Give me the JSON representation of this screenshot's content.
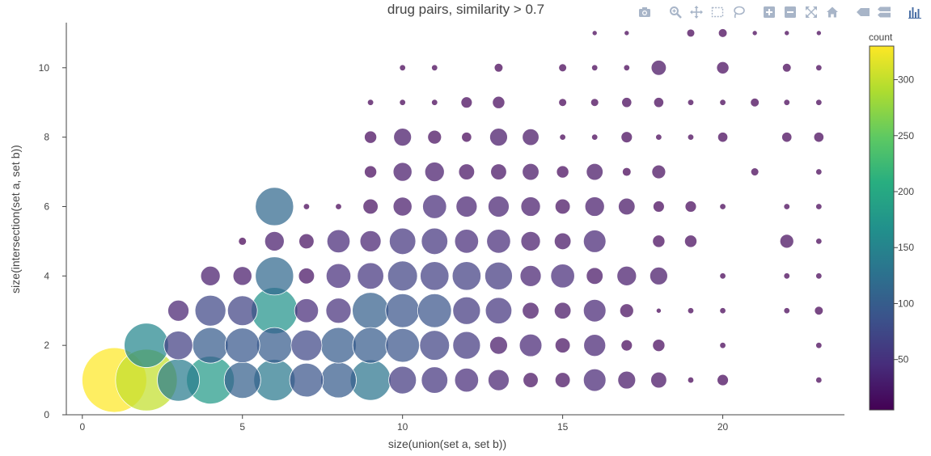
{
  "chart_data": {
    "type": "scatter",
    "title": "drug pairs, similarity > 0.7",
    "xlabel": "size(union(set a, set b))",
    "ylabel": "size(intersection(set a, set b))",
    "xlim": [
      -0.5,
      23.8
    ],
    "ylim": [
      0,
      11.3
    ],
    "xticks": [
      0,
      5,
      10,
      15,
      20
    ],
    "yticks": [
      0,
      2,
      4,
      6,
      8,
      10
    ],
    "grid": false,
    "marker_size_encodes": "count",
    "colorbar": {
      "title": "count",
      "min": 5,
      "max": 330,
      "ticks": [
        50,
        100,
        150,
        200,
        250,
        300
      ],
      "colorscale": "viridis"
    },
    "points": [
      {
        "x": 1,
        "y": 1,
        "count": 330
      },
      {
        "x": 2,
        "y": 1,
        "count": 300
      },
      {
        "x": 2,
        "y": 2,
        "count": 155
      },
      {
        "x": 3,
        "y": 1,
        "count": 140
      },
      {
        "x": 3,
        "y": 2,
        "count": 65
      },
      {
        "x": 3,
        "y": 3,
        "count": 35
      },
      {
        "x": 4,
        "y": 1,
        "count": 180
      },
      {
        "x": 4,
        "y": 2,
        "count": 100
      },
      {
        "x": 4,
        "y": 3,
        "count": 75
      },
      {
        "x": 4,
        "y": 4,
        "count": 30
      },
      {
        "x": 5,
        "y": 1,
        "count": 105
      },
      {
        "x": 5,
        "y": 2,
        "count": 95
      },
      {
        "x": 5,
        "y": 3,
        "count": 70
      },
      {
        "x": 5,
        "y": 4,
        "count": 28
      },
      {
        "x": 5,
        "y": 5,
        "count": 5
      },
      {
        "x": 6,
        "y": 1,
        "count": 135
      },
      {
        "x": 6,
        "y": 2,
        "count": 100
      },
      {
        "x": 6,
        "y": 3,
        "count": 170
      },
      {
        "x": 6,
        "y": 4,
        "count": 115
      },
      {
        "x": 6,
        "y": 5,
        "count": 30
      },
      {
        "x": 6,
        "y": 6,
        "count": 115
      },
      {
        "x": 7,
        "y": 1,
        "count": 90
      },
      {
        "x": 7,
        "y": 2,
        "count": 75
      },
      {
        "x": 7,
        "y": 3,
        "count": 45
      },
      {
        "x": 7,
        "y": 4,
        "count": 20
      },
      {
        "x": 7,
        "y": 5,
        "count": 18
      },
      {
        "x": 7,
        "y": 6,
        "count": 3
      },
      {
        "x": 8,
        "y": 1,
        "count": 100
      },
      {
        "x": 8,
        "y": 2,
        "count": 100
      },
      {
        "x": 8,
        "y": 3,
        "count": 50
      },
      {
        "x": 8,
        "y": 4,
        "count": 48
      },
      {
        "x": 8,
        "y": 5,
        "count": 42
      },
      {
        "x": 8,
        "y": 6,
        "count": 3
      },
      {
        "x": 9,
        "y": 1,
        "count": 130
      },
      {
        "x": 9,
        "y": 2,
        "count": 100
      },
      {
        "x": 9,
        "y": 3,
        "count": 105
      },
      {
        "x": 9,
        "y": 4,
        "count": 55
      },
      {
        "x": 9,
        "y": 5,
        "count": 35
      },
      {
        "x": 9,
        "y": 6,
        "count": 18
      },
      {
        "x": 9,
        "y": 7,
        "count": 12
      },
      {
        "x": 9,
        "y": 8,
        "count": 12
      },
      {
        "x": 9,
        "y": 9,
        "count": 3
      },
      {
        "x": 10,
        "y": 1,
        "count": 60
      },
      {
        "x": 10,
        "y": 2,
        "count": 90
      },
      {
        "x": 10,
        "y": 3,
        "count": 90
      },
      {
        "x": 10,
        "y": 4,
        "count": 70
      },
      {
        "x": 10,
        "y": 5,
        "count": 55
      },
      {
        "x": 10,
        "y": 6,
        "count": 28
      },
      {
        "x": 10,
        "y": 7,
        "count": 28
      },
      {
        "x": 10,
        "y": 8,
        "count": 25
      },
      {
        "x": 10,
        "y": 9,
        "count": 3
      },
      {
        "x": 10,
        "y": 10,
        "count": 3
      },
      {
        "x": 11,
        "y": 1,
        "count": 55
      },
      {
        "x": 11,
        "y": 2,
        "count": 70
      },
      {
        "x": 11,
        "y": 3,
        "count": 90
      },
      {
        "x": 11,
        "y": 4,
        "count": 65
      },
      {
        "x": 11,
        "y": 5,
        "count": 55
      },
      {
        "x": 11,
        "y": 6,
        "count": 45
      },
      {
        "x": 11,
        "y": 7,
        "count": 30
      },
      {
        "x": 11,
        "y": 8,
        "count": 15
      },
      {
        "x": 11,
        "y": 9,
        "count": 3
      },
      {
        "x": 11,
        "y": 10,
        "count": 3
      },
      {
        "x": 12,
        "y": 1,
        "count": 45
      },
      {
        "x": 12,
        "y": 2,
        "count": 60
      },
      {
        "x": 12,
        "y": 3,
        "count": 60
      },
      {
        "x": 12,
        "y": 4,
        "count": 65
      },
      {
        "x": 12,
        "y": 5,
        "count": 45
      },
      {
        "x": 12,
        "y": 6,
        "count": 35
      },
      {
        "x": 12,
        "y": 7,
        "count": 20
      },
      {
        "x": 12,
        "y": 8,
        "count": 8
      },
      {
        "x": 12,
        "y": 9,
        "count": 10
      },
      {
        "x": 13,
        "y": 1,
        "count": 35
      },
      {
        "x": 13,
        "y": 2,
        "count": 25
      },
      {
        "x": 13,
        "y": 3,
        "count": 55
      },
      {
        "x": 13,
        "y": 4,
        "count": 60
      },
      {
        "x": 13,
        "y": 5,
        "count": 45
      },
      {
        "x": 13,
        "y": 6,
        "count": 35
      },
      {
        "x": 13,
        "y": 7,
        "count": 20
      },
      {
        "x": 13,
        "y": 8,
        "count": 25
      },
      {
        "x": 13,
        "y": 9,
        "count": 12
      },
      {
        "x": 13,
        "y": 10,
        "count": 6
      },
      {
        "x": 14,
        "y": 1,
        "count": 18
      },
      {
        "x": 14,
        "y": 2,
        "count": 40
      },
      {
        "x": 14,
        "y": 3,
        "count": 22
      },
      {
        "x": 14,
        "y": 4,
        "count": 35
      },
      {
        "x": 14,
        "y": 5,
        "count": 30
      },
      {
        "x": 14,
        "y": 6,
        "count": 30
      },
      {
        "x": 14,
        "y": 7,
        "count": 22
      },
      {
        "x": 14,
        "y": 8,
        "count": 22
      },
      {
        "x": 15,
        "y": 1,
        "count": 18
      },
      {
        "x": 15,
        "y": 2,
        "count": 18
      },
      {
        "x": 15,
        "y": 3,
        "count": 22
      },
      {
        "x": 15,
        "y": 4,
        "count": 45
      },
      {
        "x": 15,
        "y": 5,
        "count": 22
      },
      {
        "x": 15,
        "y": 6,
        "count": 18
      },
      {
        "x": 15,
        "y": 7,
        "count": 12
      },
      {
        "x": 15,
        "y": 8,
        "count": 3
      },
      {
        "x": 15,
        "y": 9,
        "count": 5
      },
      {
        "x": 15,
        "y": 10,
        "count": 5
      },
      {
        "x": 16,
        "y": 1,
        "count": 40
      },
      {
        "x": 16,
        "y": 2,
        "count": 38
      },
      {
        "x": 16,
        "y": 3,
        "count": 40
      },
      {
        "x": 16,
        "y": 4,
        "count": 22
      },
      {
        "x": 16,
        "y": 5,
        "count": 40
      },
      {
        "x": 16,
        "y": 6,
        "count": 30
      },
      {
        "x": 16,
        "y": 7,
        "count": 22
      },
      {
        "x": 16,
        "y": 8,
        "count": 3
      },
      {
        "x": 16,
        "y": 9,
        "count": 5
      },
      {
        "x": 16,
        "y": 10,
        "count": 3
      },
      {
        "x": 16,
        "y": 11,
        "count": 2
      },
      {
        "x": 17,
        "y": 1,
        "count": 25
      },
      {
        "x": 17,
        "y": 2,
        "count": 10
      },
      {
        "x": 17,
        "y": 3,
        "count": 15
      },
      {
        "x": 17,
        "y": 4,
        "count": 30
      },
      {
        "x": 17,
        "y": 6,
        "count": 22
      },
      {
        "x": 17,
        "y": 7,
        "count": 6
      },
      {
        "x": 17,
        "y": 8,
        "count": 10
      },
      {
        "x": 17,
        "y": 9,
        "count": 8
      },
      {
        "x": 17,
        "y": 10,
        "count": 3
      },
      {
        "x": 17,
        "y": 11,
        "count": 2
      },
      {
        "x": 18,
        "y": 1,
        "count": 20
      },
      {
        "x": 18,
        "y": 2,
        "count": 12
      },
      {
        "x": 18,
        "y": 3,
        "count": 2
      },
      {
        "x": 18,
        "y": 4,
        "count": 25
      },
      {
        "x": 18,
        "y": 5,
        "count": 12
      },
      {
        "x": 18,
        "y": 6,
        "count": 10
      },
      {
        "x": 18,
        "y": 7,
        "count": 15
      },
      {
        "x": 18,
        "y": 8,
        "count": 3
      },
      {
        "x": 18,
        "y": 9,
        "count": 8
      },
      {
        "x": 18,
        "y": 10,
        "count": 18
      },
      {
        "x": 19,
        "y": 1,
        "count": 3
      },
      {
        "x": 19,
        "y": 3,
        "count": 3
      },
      {
        "x": 19,
        "y": 5,
        "count": 12
      },
      {
        "x": 19,
        "y": 6,
        "count": 10
      },
      {
        "x": 19,
        "y": 8,
        "count": 3
      },
      {
        "x": 19,
        "y": 9,
        "count": 3
      },
      {
        "x": 19,
        "y": 11,
        "count": 5
      },
      {
        "x": 20,
        "y": 1,
        "count": 10
      },
      {
        "x": 20,
        "y": 2,
        "count": 3
      },
      {
        "x": 20,
        "y": 3,
        "count": 3
      },
      {
        "x": 20,
        "y": 4,
        "count": 3
      },
      {
        "x": 20,
        "y": 6,
        "count": 3
      },
      {
        "x": 20,
        "y": 8,
        "count": 8
      },
      {
        "x": 20,
        "y": 9,
        "count": 3
      },
      {
        "x": 20,
        "y": 10,
        "count": 12
      },
      {
        "x": 20,
        "y": 11,
        "count": 6
      },
      {
        "x": 21,
        "y": 7,
        "count": 5
      },
      {
        "x": 21,
        "y": 9,
        "count": 6
      },
      {
        "x": 21,
        "y": 11,
        "count": 2
      },
      {
        "x": 22,
        "y": 3,
        "count": 3
      },
      {
        "x": 22,
        "y": 4,
        "count": 3
      },
      {
        "x": 22,
        "y": 5,
        "count": 15
      },
      {
        "x": 22,
        "y": 6,
        "count": 3
      },
      {
        "x": 22,
        "y": 8,
        "count": 8
      },
      {
        "x": 22,
        "y": 9,
        "count": 3
      },
      {
        "x": 22,
        "y": 10,
        "count": 6
      },
      {
        "x": 22,
        "y": 11,
        "count": 2
      },
      {
        "x": 23,
        "y": 1,
        "count": 3
      },
      {
        "x": 23,
        "y": 2,
        "count": 3
      },
      {
        "x": 23,
        "y": 3,
        "count": 6
      },
      {
        "x": 23,
        "y": 4,
        "count": 3
      },
      {
        "x": 23,
        "y": 5,
        "count": 3
      },
      {
        "x": 23,
        "y": 6,
        "count": 3
      },
      {
        "x": 23,
        "y": 7,
        "count": 3
      },
      {
        "x": 23,
        "y": 8,
        "count": 8
      },
      {
        "x": 23,
        "y": 9,
        "count": 3
      },
      {
        "x": 23,
        "y": 10,
        "count": 3
      },
      {
        "x": 23,
        "y": 11,
        "count": 2
      }
    ]
  },
  "toolbar": {
    "colors": {
      "icon": "#a8b5c8",
      "icon_active": "#4a6fa5"
    },
    "buttons": [
      {
        "name": "camera-icon",
        "group": 1
      },
      {
        "name": "zoom-icon",
        "group": 2
      },
      {
        "name": "pan-icon",
        "group": 2
      },
      {
        "name": "box-select-icon",
        "group": 2
      },
      {
        "name": "lasso-select-icon",
        "group": 2
      },
      {
        "name": "zoom-in-icon",
        "group": 3
      },
      {
        "name": "zoom-out-icon",
        "group": 3
      },
      {
        "name": "autoscale-icon",
        "group": 3
      },
      {
        "name": "reset-axes-icon",
        "group": 3
      },
      {
        "name": "hover-closest-icon",
        "group": 4
      },
      {
        "name": "hover-compare-icon",
        "group": 4
      },
      {
        "name": "plotly-logo-icon",
        "group": 5
      }
    ]
  }
}
